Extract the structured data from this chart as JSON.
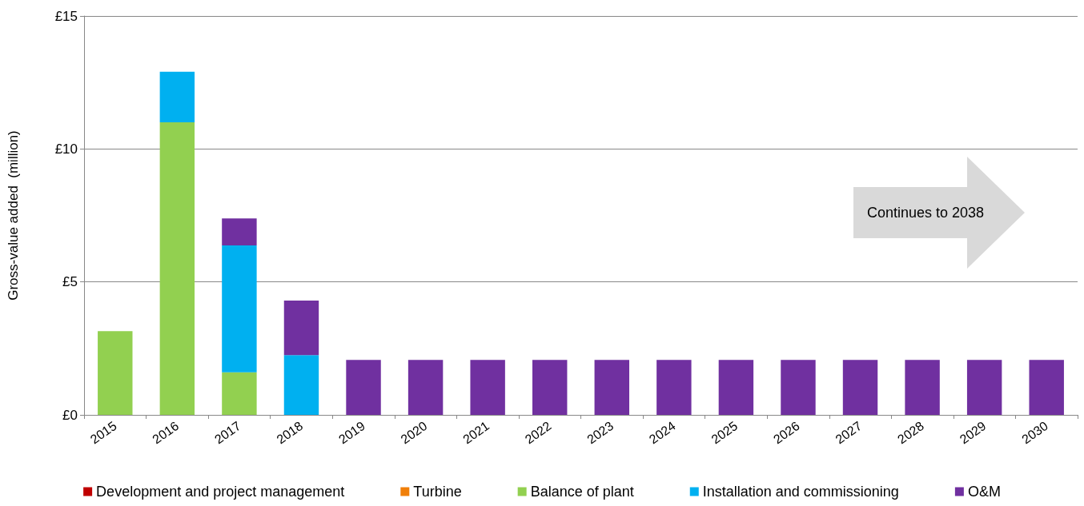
{
  "chart_data": {
    "type": "bar",
    "stacked": true,
    "ylabel": "Gross-value added  (million)",
    "categories": [
      "2015",
      "2016",
      "2017",
      "2018",
      "2019",
      "2020",
      "2021",
      "2022",
      "2023",
      "2024",
      "2025",
      "2026",
      "2027",
      "2028",
      "2029",
      "2030"
    ],
    "series": [
      {
        "name": "Development and project management",
        "color": "#c00000",
        "values": [
          0,
          0,
          0,
          0,
          0,
          0,
          0,
          0,
          0,
          0,
          0,
          0,
          0,
          0,
          0,
          0
        ]
      },
      {
        "name": "Turbine",
        "color": "#f07f09",
        "values": [
          0,
          0,
          0,
          0,
          0,
          0,
          0,
          0,
          0,
          0,
          0,
          0,
          0,
          0,
          0,
          0
        ]
      },
      {
        "name": "Balance of plant",
        "color": "#92d050",
        "values": [
          3.15,
          11.0,
          1.6,
          0,
          0,
          0,
          0,
          0,
          0,
          0,
          0,
          0,
          0,
          0,
          0,
          0
        ]
      },
      {
        "name": "Installation and commissioning",
        "color": "#00b0f0",
        "values": [
          0,
          1.9,
          4.77,
          2.25,
          0,
          0,
          0,
          0,
          0,
          0,
          0,
          0,
          0,
          0,
          0,
          0
        ]
      },
      {
        "name": "O&M",
        "color": "#7030a0",
        "values": [
          0,
          0,
          1.02,
          2.05,
          2.07,
          2.07,
          2.07,
          2.07,
          2.07,
          2.07,
          2.07,
          2.07,
          2.07,
          2.07,
          2.07,
          2.07
        ]
      }
    ],
    "ylim": [
      0,
      15
    ],
    "yticks": [
      {
        "value": 0,
        "label": "£0"
      },
      {
        "value": 5,
        "label": "£5"
      },
      {
        "value": 10,
        "label": "£10"
      },
      {
        "value": 15,
        "label": "£15"
      }
    ],
    "grid": "y",
    "legend": "bottom",
    "annotations": [
      "Continues to 2038"
    ]
  }
}
